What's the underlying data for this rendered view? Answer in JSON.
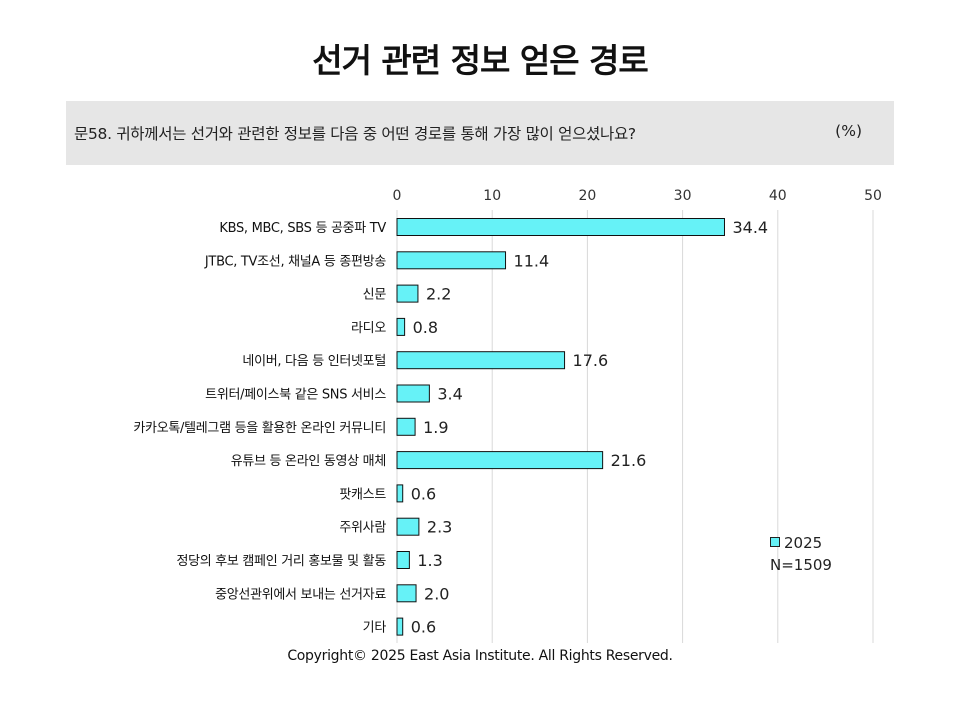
{
  "title": "선거 관련 정보 얻은 경로",
  "question": {
    "text": "문58. 귀하께서는 선거와 관련한 정보를 다음 중 어떤 경로를 통해 가장 많이 얻으셨나요?",
    "unit": "(%)"
  },
  "legend": {
    "series_label": "2025",
    "sample": "N=1509"
  },
  "footer": "Copyright© 2025 East Asia Institute. All Rights Reserved.",
  "colors": {
    "bar": "#66f2f7",
    "bar_stroke": "#111111",
    "grid": "#d9d9d9"
  },
  "chart_data": {
    "type": "bar",
    "orientation": "horizontal",
    "categories": [
      "KBS, MBC, SBS 등 공중파 TV",
      "JTBC, TV조선, 채널A 등 종편방송",
      "신문",
      "라디오",
      "네이버, 다음 등 인터넷포털",
      "트위터/페이스북 같은 SNS 서비스",
      "카카오톡/텔레그램 등을 활용한 온라인 커뮤니티",
      "유튜브 등 온라인 동영상 매체",
      "팟캐스트",
      "주위사람",
      "정당의 후보 캠페인 거리 홍보물 및 활동",
      "중앙선관위에서 보내는 선거자료",
      "기타"
    ],
    "series": [
      {
        "name": "2025",
        "values": [
          34.4,
          11.4,
          2.2,
          0.8,
          17.6,
          3.4,
          1.9,
          21.6,
          0.6,
          2.3,
          1.3,
          2.0,
          0.6
        ]
      }
    ],
    "value_labels": [
      "34.4",
      "11.4",
      "2.2",
      "0.8",
      "17.6",
      "3.4",
      "1.9",
      "21.6",
      "0.6",
      "2.3",
      "1.3",
      "2.0",
      "0.6"
    ],
    "xlim": [
      0,
      50
    ],
    "xticks": [
      0,
      10,
      20,
      30,
      40,
      50
    ],
    "tick_labels": [
      "0",
      "10",
      "20",
      "30",
      "40",
      "50"
    ],
    "grid": true,
    "axis_position": "top",
    "legend_position": "bottom-right"
  }
}
